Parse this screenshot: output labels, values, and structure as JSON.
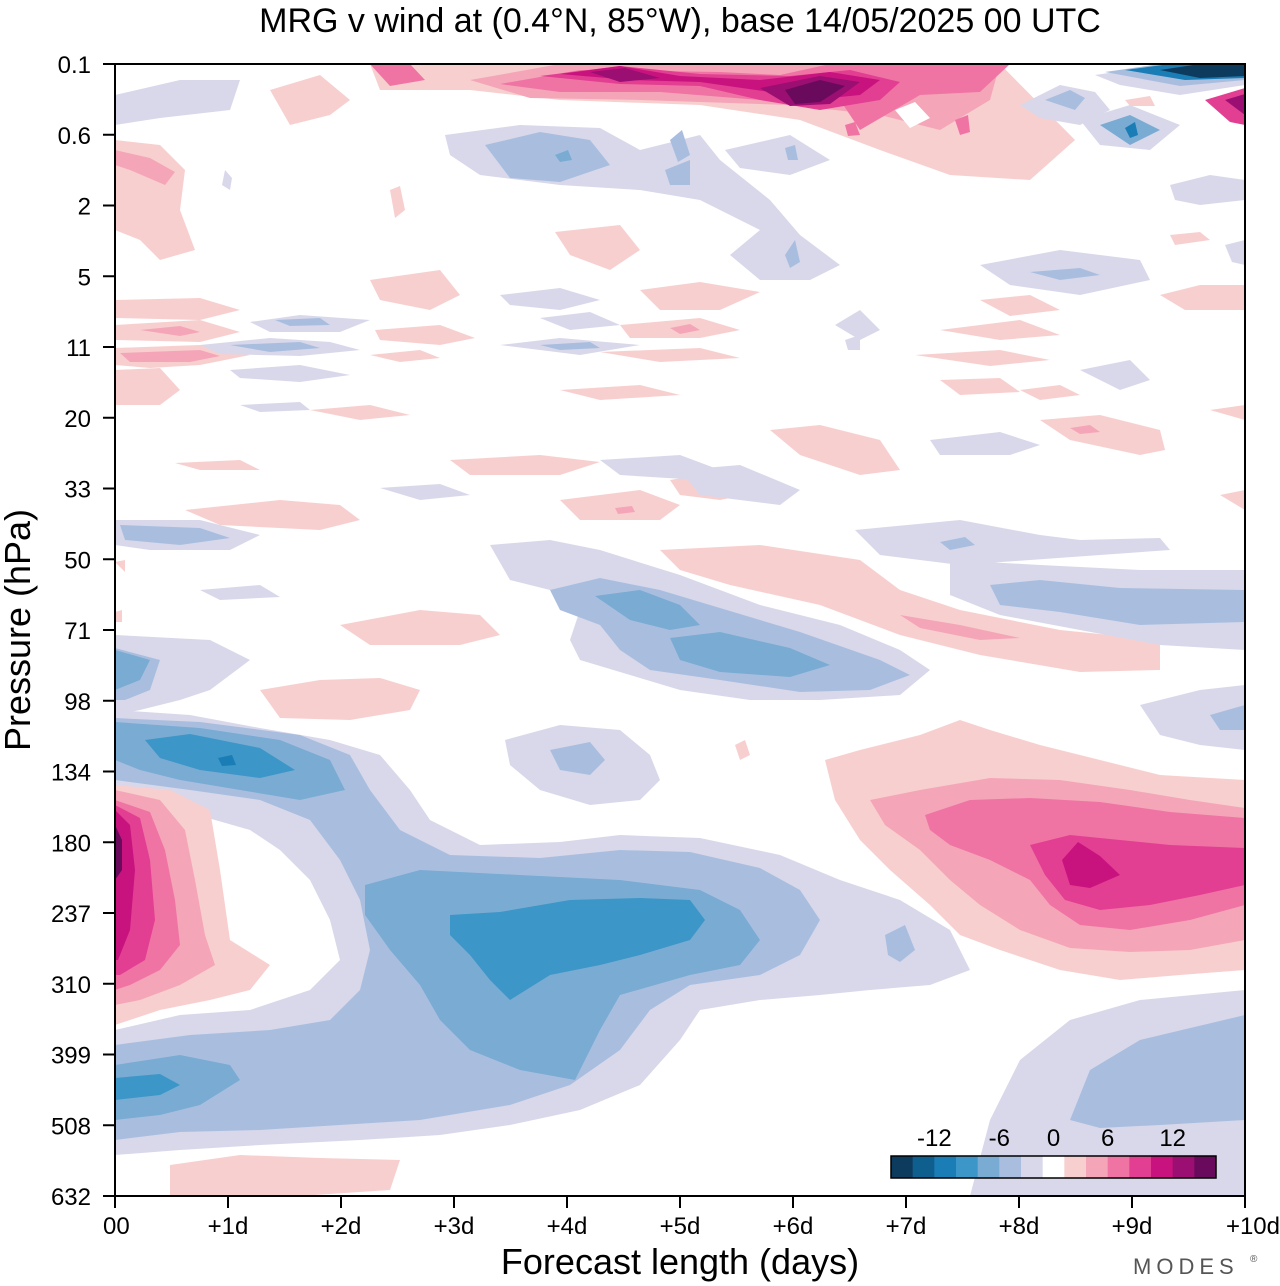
{
  "chart_data": {
    "type": "heatmap",
    "title": "MRG v wind at (0.4°N, 85°W),  base 14/05/2025  00 UTC",
    "xlabel": "Forecast length (days)",
    "ylabel": "Pressure (hPa)",
    "x_ticks": [
      "00",
      "+1d",
      "+2d",
      "+3d",
      "+4d",
      "+5d",
      "+6d",
      "+7d",
      "+8d",
      "+9d",
      "+10d"
    ],
    "y_ticks": [
      "0.1",
      "0.6",
      "2",
      "5",
      "11",
      "20",
      "33",
      "50",
      "71",
      "98",
      "134",
      "180",
      "237",
      "310",
      "399",
      "508",
      "632"
    ],
    "xlim": [
      0,
      10
    ],
    "y_scale": "log-pressure (top 0.1 hPa, bottom 632 hPa)",
    "grid": false,
    "colorbar": {
      "placement": "bottom-right",
      "tick_labels": [
        "-12",
        "-6",
        "0",
        "6",
        "12"
      ],
      "levels": [
        -16,
        -14,
        -12,
        -10,
        -8,
        -6,
        -4,
        -2,
        2,
        4,
        6,
        8,
        10,
        12,
        14,
        16
      ],
      "colors": [
        "#0d3b5e",
        "#0f5f8e",
        "#1a7db5",
        "#3c96c7",
        "#7aabd3",
        "#a9bedf",
        "#d8d8ea",
        "#ffffff",
        "#f8cfcf",
        "#f4a6b8",
        "#ef74a4",
        "#e23f92",
        "#c8137f",
        "#9b0e72",
        "#6a0a5c"
      ]
    },
    "features": [
      {
        "name": "easterly-negative band lower troposphere",
        "x": [
          0.3,
          6.5
        ],
        "p": [
          134,
          508
        ],
        "value": -8
      },
      {
        "name": "negative core",
        "x": [
          3.5,
          5.0
        ],
        "p": [
          237,
          310
        ],
        "value": -10
      },
      {
        "name": "positive near 00",
        "x": [
          0,
          0.6
        ],
        "p": [
          180,
          310
        ],
        "value": 12
      },
      {
        "name": "positive maximum",
        "x": [
          8.0,
          10.0
        ],
        "p": [
          134,
          310
        ],
        "value": 10
      },
      {
        "name": "positive upper stratosphere",
        "x": [
          3.5,
          7.5
        ],
        "p": [
          0.1,
          0.6
        ],
        "value": 14
      },
      {
        "name": "negative upper corner",
        "x": [
          9.0,
          10.0
        ],
        "p": [
          0.1,
          0.3
        ],
        "value": -14
      },
      {
        "name": "negative 50-98 hPa",
        "x": [
          4.0,
          7.0
        ],
        "p": [
          50,
          98
        ],
        "value": -8
      }
    ]
  },
  "branding": {
    "logo_text": "MODES"
  }
}
